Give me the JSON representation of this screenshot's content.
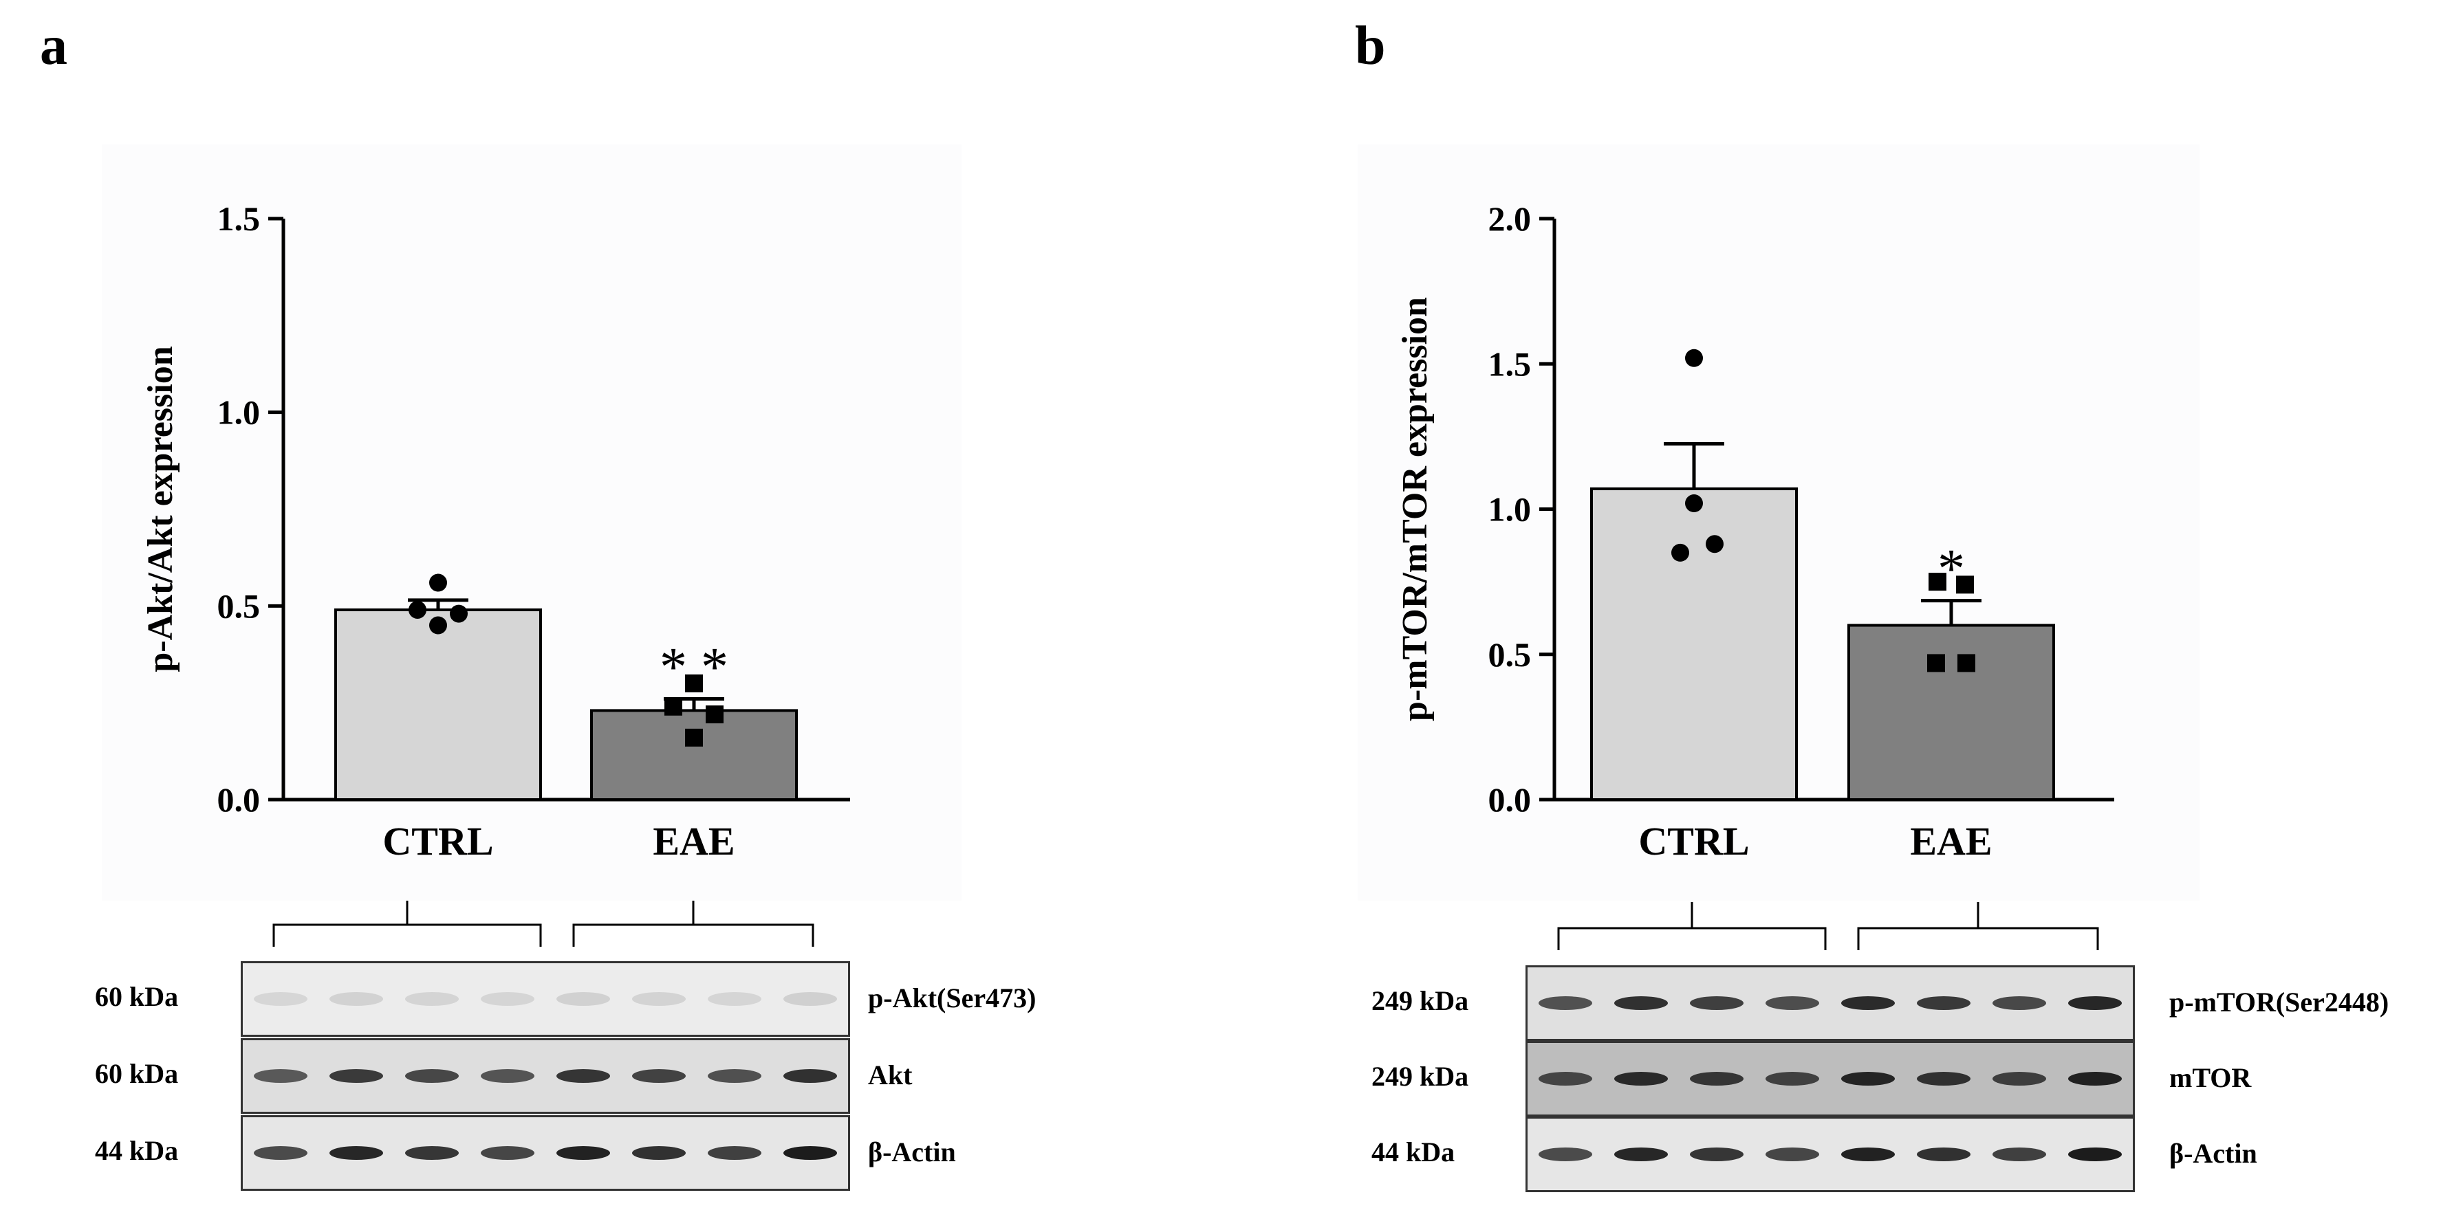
{
  "panels": [
    {
      "letter": "a",
      "chart": {
        "type": "bar",
        "categories": [
          "CTRL",
          "EAE"
        ],
        "values": [
          0.49,
          0.23
        ],
        "sem": [
          0.025,
          0.03
        ],
        "points": [
          [
            0.56,
            0.48,
            0.49,
            0.45
          ],
          [
            0.3,
            0.24,
            0.22,
            0.16
          ]
        ],
        "marker": [
          "circle",
          "square"
        ],
        "bar_colors": [
          "#d6d6d6",
          "#808080"
        ],
        "significance": [
          "",
          "* *"
        ],
        "ylabel": "p-Akt/Akt expression",
        "ylim": [
          0,
          1.5
        ],
        "yticks": [
          "0.0",
          "0.5",
          "1.0",
          "1.5"
        ]
      },
      "blot": {
        "rows": [
          {
            "kda": "60 kDa",
            "label": "p-Akt(Ser473)",
            "bg": "#ececec",
            "intensity": 0.12
          },
          {
            "kda": "60 kDa",
            "label": "Akt",
            "bg": "#dedede",
            "intensity": 0.8
          },
          {
            "kda": "44 kDa",
            "label": "β-Actin",
            "bg": "#e6e6e6",
            "intensity": 0.9
          }
        ]
      }
    },
    {
      "letter": "b",
      "chart": {
        "type": "bar",
        "categories": [
          "CTRL",
          "EAE"
        ],
        "values": [
          1.07,
          0.6
        ],
        "sem": [
          0.155,
          0.085
        ],
        "points": [
          [
            1.52,
            1.02,
            0.88,
            0.85
          ],
          [
            0.75,
            0.74,
            0.47,
            0.47
          ]
        ],
        "marker": [
          "circle",
          "square"
        ],
        "bar_colors": [
          "#d6d6d6",
          "#808080"
        ],
        "significance": [
          "",
          "*"
        ],
        "ylabel": "p-mTOR/mTOR expression",
        "ylim": [
          0,
          2.0
        ],
        "yticks": [
          "0.0",
          "0.5",
          "1.0",
          "1.5",
          "2.0"
        ]
      },
      "blot": {
        "rows": [
          {
            "kda": "249 kDa",
            "label": "p-mTOR(Ser2448)",
            "bg": "#e0e0e0",
            "intensity": 0.85
          },
          {
            "kda": "249 kDa",
            "label": "mTOR",
            "bg": "#bdbdbd",
            "intensity": 0.85
          },
          {
            "kda": "44 kDa",
            "label": "β-Actin",
            "bg": "#e6e6e6",
            "intensity": 0.9
          }
        ]
      }
    }
  ]
}
